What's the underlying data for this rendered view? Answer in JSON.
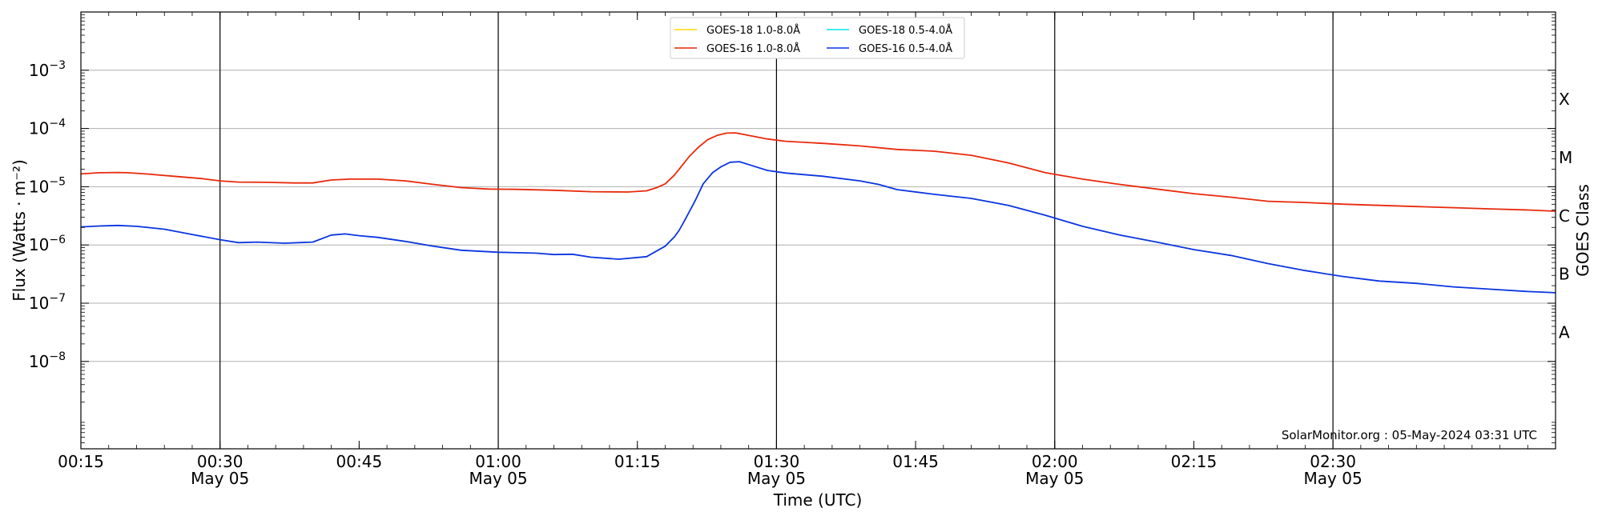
{
  "chart_data": {
    "type": "line",
    "xlabel": "Time (UTC)",
    "ylabel": "Flux (Watts · m⁻²)",
    "y2label": "GOES Class",
    "xlim_minutes": [
      15,
      174
    ],
    "ylim_log10": [
      -9.5,
      -2
    ],
    "yscale": "log",
    "x_ticks": [
      {
        "min": 15,
        "label": "00:15",
        "sub": ""
      },
      {
        "min": 30,
        "label": "00:30",
        "sub": "May 05"
      },
      {
        "min": 45,
        "label": "00:45",
        "sub": ""
      },
      {
        "min": 60,
        "label": "01:00",
        "sub": "May 05"
      },
      {
        "min": 75,
        "label": "01:15",
        "sub": ""
      },
      {
        "min": 90,
        "label": "01:30",
        "sub": "May 05"
      },
      {
        "min": 105,
        "label": "01:45",
        "sub": ""
      },
      {
        "min": 120,
        "label": "02:00",
        "sub": "May 05"
      },
      {
        "min": 135,
        "label": "02:15",
        "sub": ""
      },
      {
        "min": 150,
        "label": "02:30",
        "sub": "May 05"
      }
    ],
    "day_lines_minutes": [
      30,
      60,
      90,
      120,
      150
    ],
    "y_ticks": [
      {
        "exp": -3,
        "base": "10",
        "power": "−3"
      },
      {
        "exp": -4,
        "base": "10",
        "power": "−4"
      },
      {
        "exp": -5,
        "base": "10",
        "power": "−5"
      },
      {
        "exp": -6,
        "base": "10",
        "power": "−6"
      },
      {
        "exp": -7,
        "base": "10",
        "power": "−7"
      },
      {
        "exp": -8,
        "base": "10",
        "power": "−8"
      }
    ],
    "goes_classes": [
      {
        "label": "X",
        "exp": -3.5
      },
      {
        "label": "M",
        "exp": -4.5
      },
      {
        "label": "C",
        "exp": -5.5
      },
      {
        "label": "B",
        "exp": -6.5
      },
      {
        "label": "A",
        "exp": -7.5
      }
    ],
    "grid": true,
    "legend_position": "top-center",
    "legend": [
      {
        "name": "GOES-18 1.0-8.0Å",
        "color": "#ffd700"
      },
      {
        "name": "GOES-18 0.5-4.0Å",
        "color": "#00e5ee"
      },
      {
        "name": "GOES-16 1.0-8.0Å",
        "color": "#e8290b"
      },
      {
        "name": "GOES-16 0.5-4.0Å",
        "color": "#0a35e0"
      }
    ],
    "credit": "SolarMonitor.org : 05-May-2024 03:31 UTC",
    "series": [
      {
        "name": "GOES-16 1.0-8.0Å",
        "color": "#e8290b",
        "x_minutes": [
          15,
          17,
          19,
          20,
          22,
          25,
          28,
          30,
          32,
          35,
          38,
          40,
          42,
          44,
          47,
          50,
          53,
          56,
          59,
          62,
          66,
          70,
          74,
          76,
          77,
          78,
          79,
          80,
          80.6,
          81.6,
          82.6,
          83.6,
          84.6,
          85.6,
          87,
          89,
          91,
          95,
          99,
          103,
          107,
          111,
          115,
          119,
          123,
          127,
          131,
          135,
          139,
          143,
          147,
          151,
          155,
          159,
          163,
          167,
          171,
          174
        ],
        "log10_y": [
          -4.78,
          -4.76,
          -4.755,
          -4.76,
          -4.78,
          -4.82,
          -4.86,
          -4.9,
          -4.92,
          -4.925,
          -4.935,
          -4.935,
          -4.885,
          -4.87,
          -4.87,
          -4.9,
          -4.96,
          -5.015,
          -5.04,
          -5.045,
          -5.06,
          -5.085,
          -5.09,
          -5.07,
          -5.02,
          -4.95,
          -4.8,
          -4.6,
          -4.48,
          -4.32,
          -4.19,
          -4.12,
          -4.08,
          -4.075,
          -4.12,
          -4.18,
          -4.22,
          -4.255,
          -4.3,
          -4.36,
          -4.39,
          -4.46,
          -4.59,
          -4.76,
          -4.87,
          -4.96,
          -5.04,
          -5.12,
          -5.18,
          -5.25,
          -5.27,
          -5.3,
          -5.32,
          -5.34,
          -5.36,
          -5.38,
          -5.4,
          -5.42
        ]
      },
      {
        "name": "GOES-16 0.5-4.0Å",
        "color": "#0a35e0",
        "x_minutes": [
          15,
          17,
          19,
          21,
          24,
          27,
          30,
          32,
          34,
          37,
          40,
          42,
          43.5,
          45,
          47,
          50,
          53,
          56,
          60,
          64,
          66,
          68,
          70,
          73,
          76,
          78,
          79,
          79.5,
          80.2,
          81.2,
          82.1,
          83.1,
          84,
          85,
          86,
          87,
          89,
          91,
          95,
          99,
          101,
          103,
          107,
          111,
          115,
          119,
          123,
          127,
          131,
          135,
          139,
          143,
          147,
          151,
          155,
          159,
          163,
          167,
          171,
          174
        ],
        "log10_y": [
          -5.69,
          -5.675,
          -5.665,
          -5.68,
          -5.73,
          -5.82,
          -5.91,
          -5.96,
          -5.95,
          -5.97,
          -5.95,
          -5.83,
          -5.81,
          -5.84,
          -5.87,
          -5.94,
          -6.02,
          -6.09,
          -6.125,
          -6.14,
          -6.165,
          -6.16,
          -6.21,
          -6.245,
          -6.2,
          -6.02,
          -5.86,
          -5.75,
          -5.55,
          -5.25,
          -4.95,
          -4.76,
          -4.66,
          -4.58,
          -4.57,
          -4.62,
          -4.72,
          -4.765,
          -4.82,
          -4.9,
          -4.96,
          -5.05,
          -5.13,
          -5.2,
          -5.32,
          -5.49,
          -5.68,
          -5.83,
          -5.95,
          -6.08,
          -6.18,
          -6.32,
          -6.44,
          -6.54,
          -6.62,
          -6.66,
          -6.72,
          -6.76,
          -6.8,
          -6.82
        ]
      }
    ]
  }
}
